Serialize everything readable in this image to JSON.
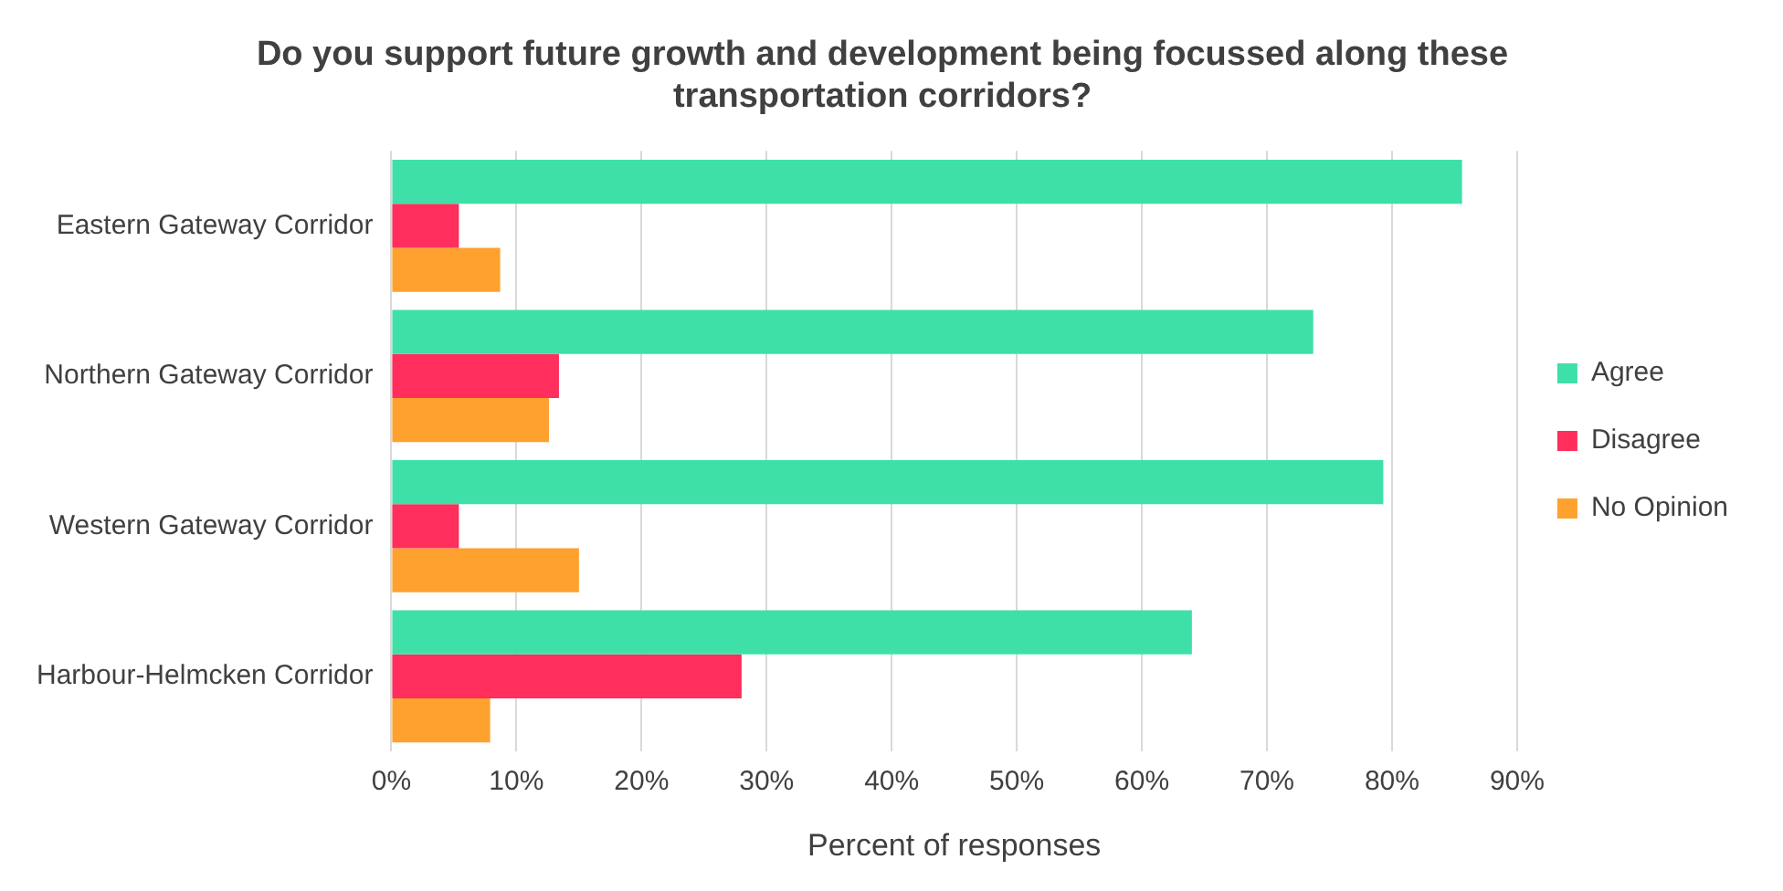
{
  "chart_data": {
    "type": "bar",
    "orientation": "horizontal",
    "title": "Do you support future growth and development being focussed along these transportation corridors?",
    "xlabel": "Percent of responses",
    "categories": [
      "Eastern Gateway Corridor",
      "Northern Gateway Corridor",
      "Western Gateway Corridor",
      "Harbour-Helmcken Corridor"
    ],
    "series": [
      {
        "name": "Agree",
        "color": "#3ee0a8",
        "values": [
          85.6,
          73.7,
          79.3,
          64.0
        ]
      },
      {
        "name": "Disagree",
        "color": "#ff2e5c",
        "values": [
          5.4,
          13.4,
          5.4,
          28.0
        ]
      },
      {
        "name": "No Opinion",
        "color": "#ffa12e",
        "values": [
          8.7,
          12.6,
          15.0,
          7.9
        ]
      }
    ],
    "xlim": [
      0,
      90
    ],
    "xticks": [
      {
        "value": 0,
        "label": "0%"
      },
      {
        "value": 10,
        "label": "10%"
      },
      {
        "value": 20,
        "label": "20%"
      },
      {
        "value": 30,
        "label": "30%"
      },
      {
        "value": 40,
        "label": "40%"
      },
      {
        "value": 50,
        "label": "50%"
      },
      {
        "value": 60,
        "label": "60%"
      },
      {
        "value": 70,
        "label": "70%"
      },
      {
        "value": 80,
        "label": "80%"
      },
      {
        "value": 90,
        "label": "90%"
      }
    ],
    "grid": "x",
    "legend": "right"
  }
}
